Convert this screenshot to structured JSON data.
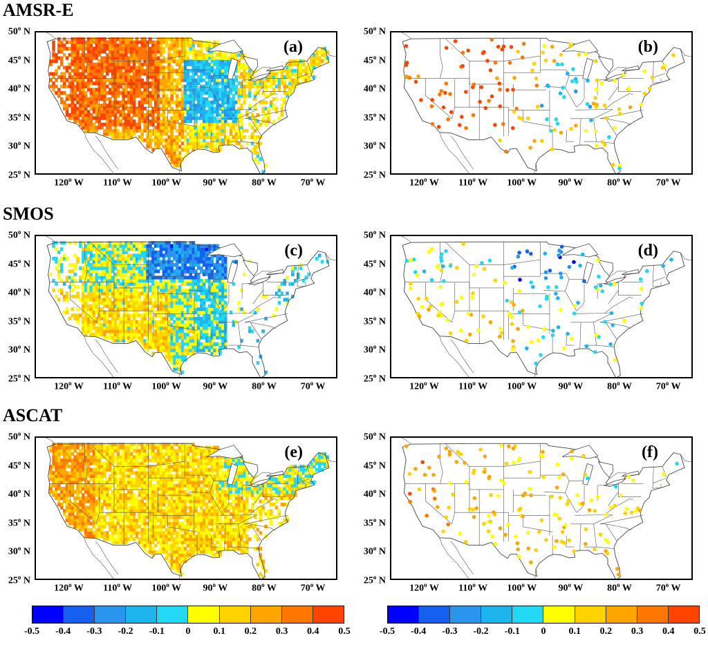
{
  "rows": [
    {
      "title": "AMSR-E",
      "panels": [
        {
          "label": "(a)",
          "kind": "field",
          "scheme": "amsr"
        },
        {
          "label": "(b)",
          "kind": "points",
          "scheme": "amsr"
        }
      ]
    },
    {
      "title": "SMOS",
      "panels": [
        {
          "label": "(c)",
          "kind": "field",
          "scheme": "smos"
        },
        {
          "label": "(d)",
          "kind": "points",
          "scheme": "smos"
        }
      ]
    },
    {
      "title": "ASCAT",
      "panels": [
        {
          "label": "(e)",
          "kind": "field",
          "scheme": "ascat"
        },
        {
          "label": "(f)",
          "kind": "points",
          "scheme": "ascat"
        }
      ]
    }
  ],
  "axes": {
    "lat_ticks": [
      {
        "value": 50,
        "text": "50",
        "hemi": "N"
      },
      {
        "value": 45,
        "text": "45",
        "hemi": "N"
      },
      {
        "value": 40,
        "text": "40",
        "hemi": "N"
      },
      {
        "value": 35,
        "text": "35",
        "hemi": "N"
      },
      {
        "value": 30,
        "text": "30",
        "hemi": "N"
      },
      {
        "value": 25,
        "text": "25",
        "hemi": "N"
      }
    ],
    "lon_ticks": [
      {
        "value": -120,
        "text": "120",
        "hemi": "W"
      },
      {
        "value": -110,
        "text": "110",
        "hemi": "W"
      },
      {
        "value": -100,
        "text": "100",
        "hemi": "W"
      },
      {
        "value": -90,
        "text": "90",
        "hemi": "W"
      },
      {
        "value": -80,
        "text": "80",
        "hemi": "W"
      },
      {
        "value": -70,
        "text": "70",
        "hemi": "W"
      }
    ],
    "lat_range": [
      25,
      50
    ],
    "lon_range": [
      -127,
      -65
    ],
    "degree_symbol": "o"
  },
  "colorbar": {
    "tick_labels": [
      "-0.5",
      "-0.4",
      "-0.3",
      "-0.2",
      "-0.1",
      "0",
      "0.1",
      "0.2",
      "0.3",
      "0.4",
      "0.5"
    ],
    "colors": [
      "#0000ff",
      "#1560ee",
      "#2a95ee",
      "#1eb4ee",
      "#23d8f4",
      "#ffff00",
      "#ffd200",
      "#ffa500",
      "#ff7700",
      "#ff4400"
    ]
  }
}
